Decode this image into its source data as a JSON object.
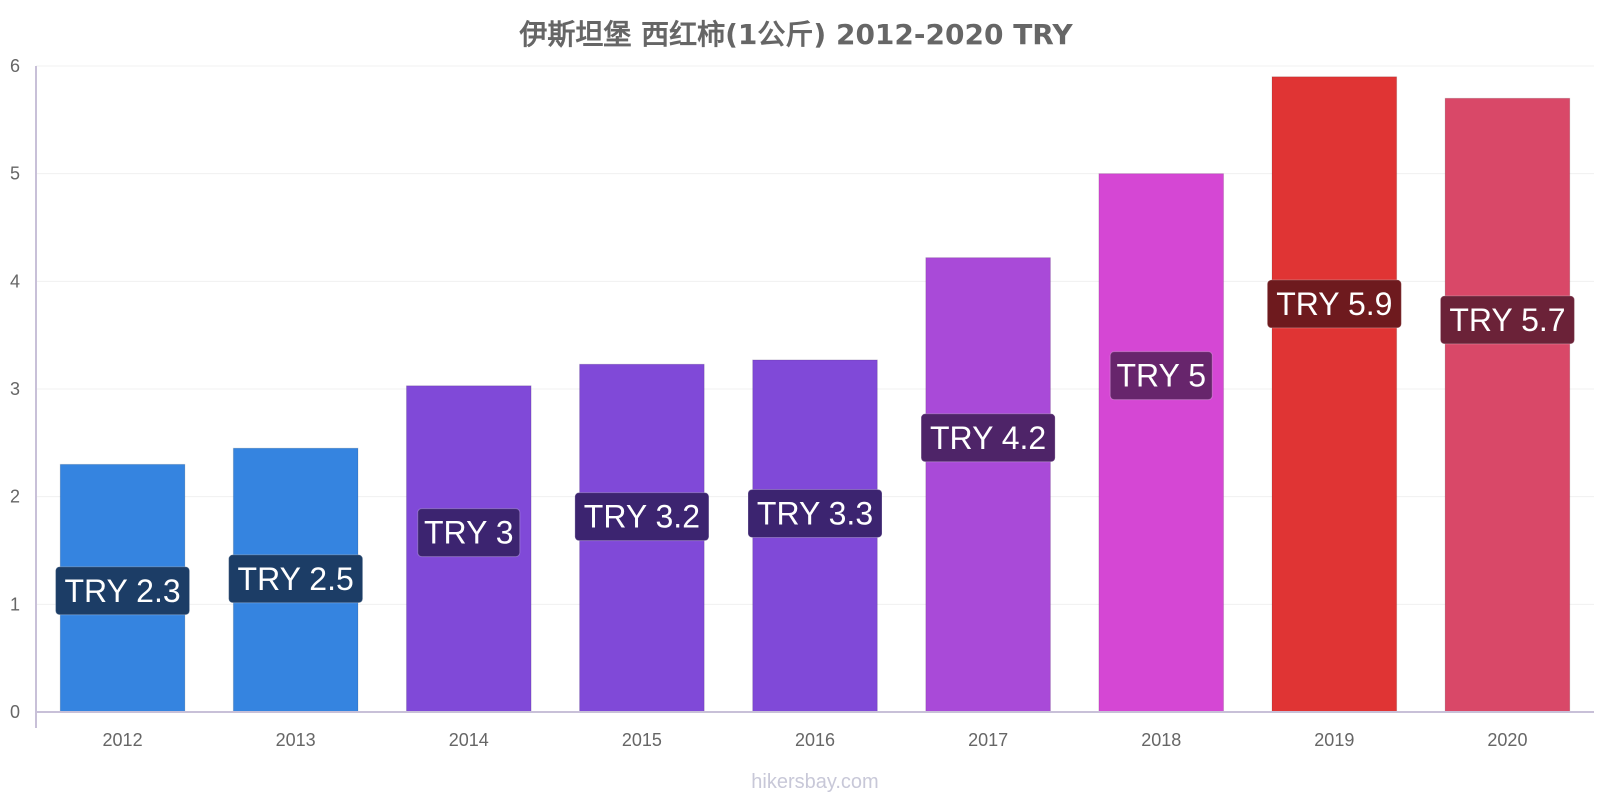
{
  "chart_data": {
    "type": "bar",
    "title": "伊斯坦堡 西红柿(1公斤) 2012-2020 TRY",
    "xlabel": "",
    "ylabel": "",
    "ylim": [
      0,
      6
    ],
    "yticks": [
      0,
      1,
      2,
      3,
      4,
      5,
      6
    ],
    "grid": true,
    "legend": "none",
    "categories": [
      "2012",
      "2013",
      "2014",
      "2015",
      "2016",
      "2017",
      "2018",
      "2019",
      "2020"
    ],
    "values": [
      2.3,
      2.45,
      3.03,
      3.23,
      3.27,
      4.22,
      5.0,
      5.9,
      5.7
    ],
    "data_labels": [
      "TRY 2.3",
      "TRY 2.5",
      "TRY 3",
      "TRY 3.2",
      "TRY 3.3",
      "TRY 4.2",
      "TRY 5",
      "TRY 5.9",
      "TRY 5.7"
    ],
    "bar_colors": [
      "#3584e0",
      "#3584e0",
      "#8049d8",
      "#8049d8",
      "#8049d8",
      "#a94ad8",
      "#d547d4",
      "#e03434",
      "#d94868"
    ],
    "label_colors": [
      "#1c3d66",
      "#1c3d66",
      "#3c2470",
      "#3c2470",
      "#3c2470",
      "#4e2468",
      "#67256c",
      "#6e1a1e",
      "#6b2238"
    ]
  },
  "watermark": "hikersbay.com"
}
